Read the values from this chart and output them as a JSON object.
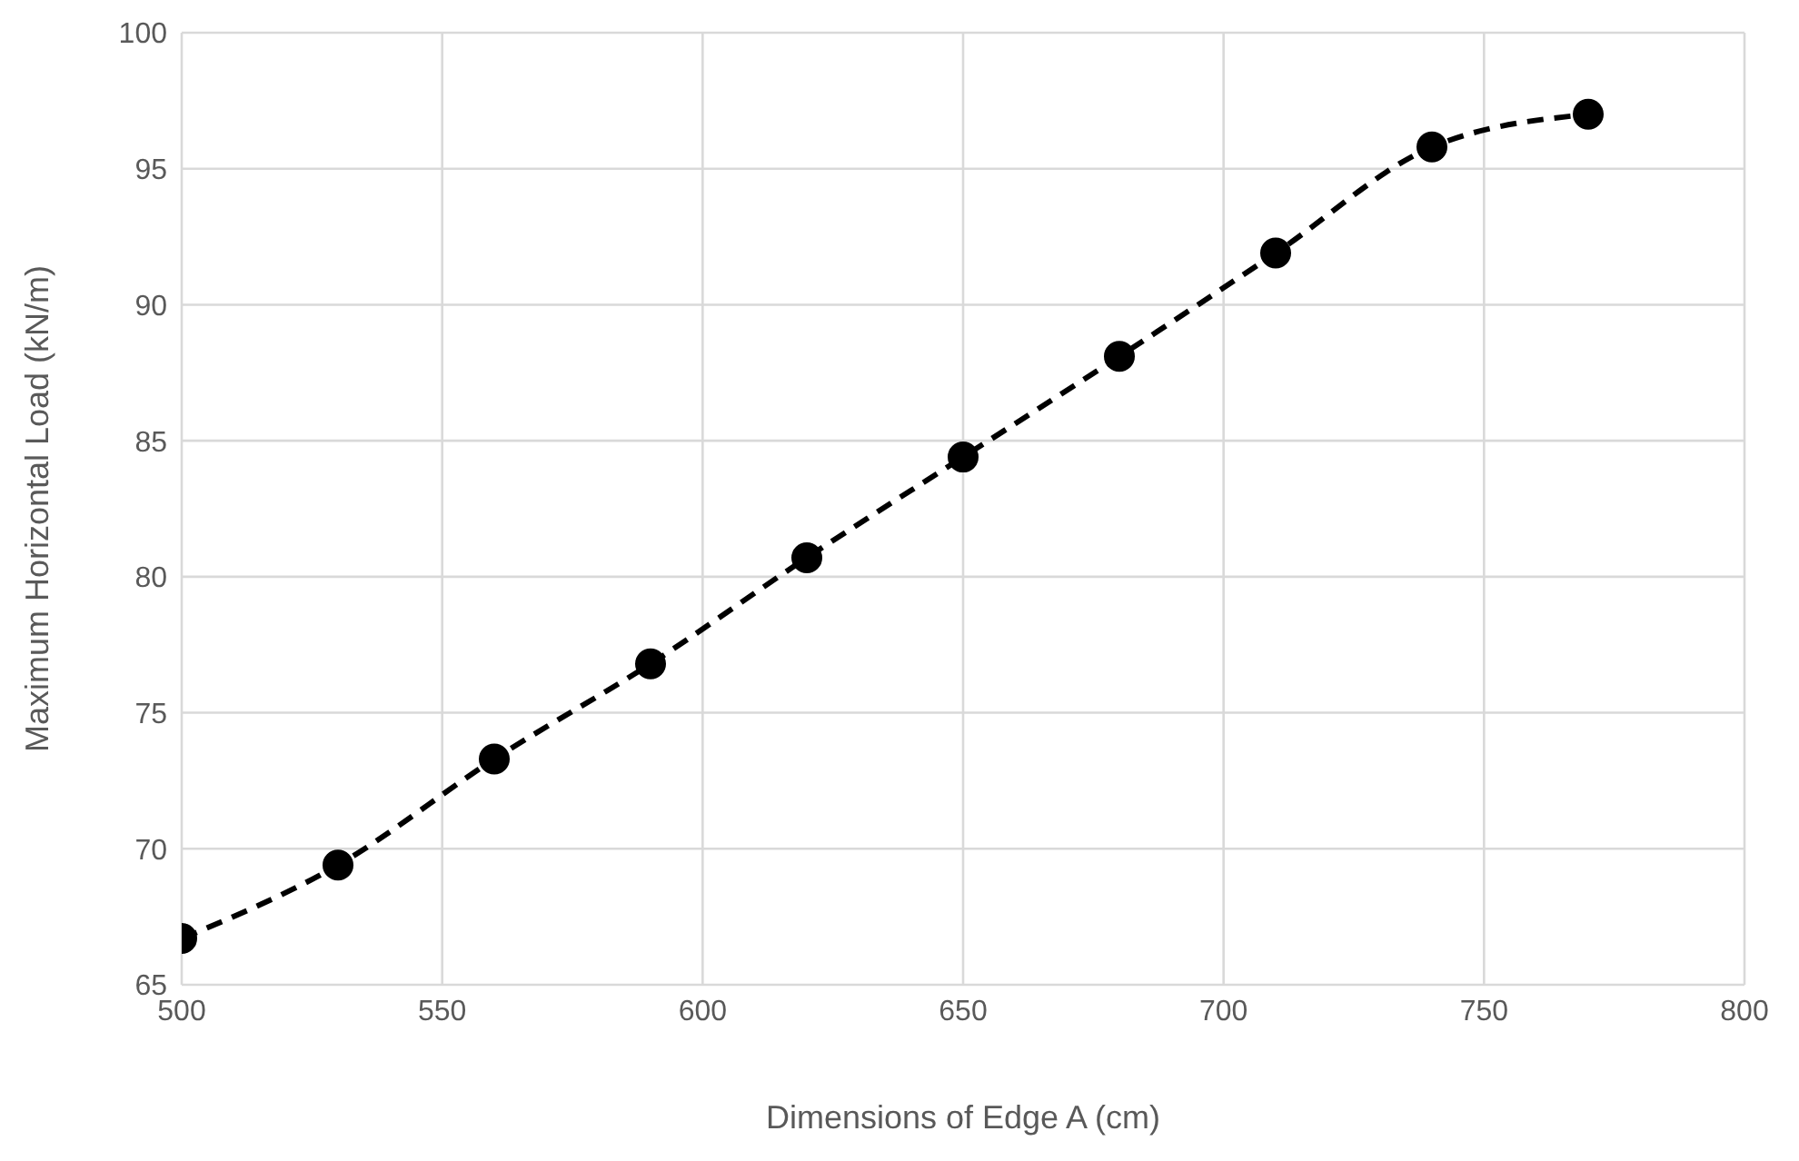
{
  "chart_data": {
    "type": "line",
    "xlabel": "Dimensions of Edge A (cm)",
    "ylabel": "Maximum Horizontal Load (kN/m)",
    "x": [
      500,
      530,
      560,
      590,
      620,
      650,
      680,
      710,
      740,
      770
    ],
    "series": [
      {
        "color": "#000000",
        "values": [
          66.7,
          69.4,
          73.3,
          76.8,
          80.7,
          84.4,
          88.1,
          91.9,
          95.8,
          97.0
        ]
      }
    ],
    "xlim": [
      500,
      800
    ],
    "xticks": [
      500,
      550,
      600,
      650,
      700,
      750,
      800
    ],
    "ylim": [
      65,
      100
    ],
    "yticks": [
      65,
      70,
      75,
      80,
      85,
      90,
      95,
      100
    ],
    "grid": true,
    "legend": false,
    "marker": "circle",
    "line_style": "dashed"
  }
}
